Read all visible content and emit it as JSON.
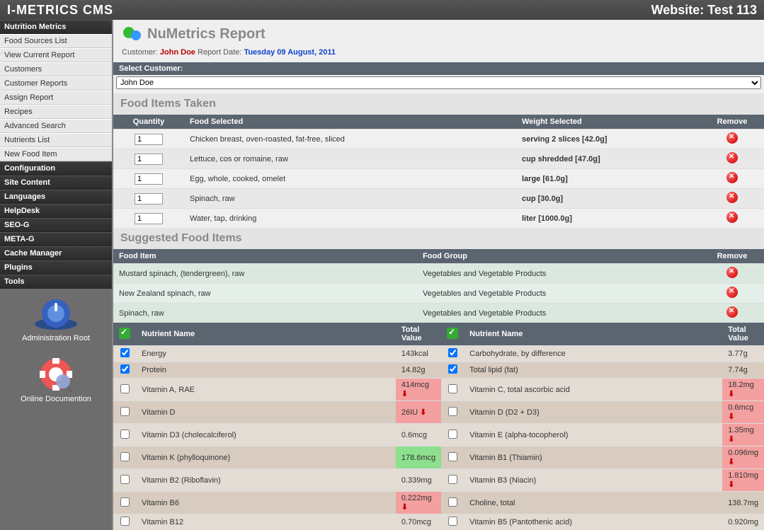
{
  "header": {
    "left": "I-METRICS CMS",
    "right": "Website: Test 113"
  },
  "sidebar": {
    "nutrition_head": "Nutrition Metrics",
    "nutrition_items": [
      "Food Sources List",
      "View Current Report",
      "Customers",
      "Customer Reports",
      "Assign Report",
      "Recipes",
      "Advanced Search",
      "Nutrients List",
      "New Food Item"
    ],
    "config_heads": [
      "Configuration",
      "Site Content",
      "Languages",
      "HelpDesk",
      "SEO-G",
      "META-G",
      "Cache Manager",
      "Plugins",
      "Tools"
    ],
    "admin_root": "Administration Root",
    "online_doc": "Online Documention"
  },
  "report": {
    "title": "NuMetrics Report",
    "customer_label": "Customer:",
    "customer_name": "John Doe",
    "date_label": "Report Date:",
    "date_value": "Tuesday 09 August, 2011",
    "select_label": "Select Customer:",
    "select_value": "John Doe"
  },
  "food_taken": {
    "title": "Food Items Taken",
    "headers": [
      "Quantity",
      "Food Selected",
      "Weight Selected",
      "Remove"
    ],
    "rows": [
      {
        "qty": "1",
        "food": "Chicken breast, oven-roasted, fat-free, sliced",
        "weight": "serving 2 slices [42.0g]"
      },
      {
        "qty": "1",
        "food": "Lettuce, cos or romaine, raw",
        "weight": "cup shredded [47.0g]"
      },
      {
        "qty": "1",
        "food": "Egg, whole, cooked, omelet",
        "weight": "large [61.0g]"
      },
      {
        "qty": "1",
        "food": "Spinach, raw",
        "weight": "cup [30.0g]"
      },
      {
        "qty": "1",
        "food": "Water, tap, drinking",
        "weight": "liter [1000.0g]"
      }
    ]
  },
  "suggested": {
    "title": "Suggested Food Items",
    "headers": [
      "Food Item",
      "Food Group",
      "Remove"
    ],
    "rows": [
      {
        "food": "Mustard spinach, (tendergreen), raw",
        "group": "Vegetables and Vegetable Products"
      },
      {
        "food": "New Zealand spinach, raw",
        "group": "Vegetables and Vegetable Products"
      },
      {
        "food": "Spinach, raw",
        "group": "Vegetables and Vegetable Products"
      }
    ]
  },
  "nutrients": {
    "headers": [
      "Nutrient Name",
      "Total Value",
      "Nutrient Name",
      "Total Value"
    ],
    "rows": [
      {
        "l_chk": true,
        "l_name": "Energy",
        "l_val": "143kcal",
        "l_flag": "",
        "r_chk": true,
        "r_name": "Carbohydrate, by difference",
        "r_val": "3.77g",
        "r_flag": ""
      },
      {
        "l_chk": true,
        "l_name": "Protein",
        "l_val": "14.82g",
        "l_flag": "",
        "r_chk": true,
        "r_name": "Total lipid (fat)",
        "r_val": "7.74g",
        "r_flag": ""
      },
      {
        "l_chk": false,
        "l_name": "Vitamin A, RAE",
        "l_val": "414mcg",
        "l_flag": "red",
        "r_chk": false,
        "r_name": "Vitamin C, total ascorbic acid",
        "r_val": "18.2mg",
        "r_flag": "red"
      },
      {
        "l_chk": false,
        "l_name": "Vitamin D",
        "l_val": "26IU",
        "l_flag": "red",
        "r_chk": false,
        "r_name": "Vitamin D (D2 + D3)",
        "r_val": "0.6mcg",
        "r_flag": "red"
      },
      {
        "l_chk": false,
        "l_name": "Vitamin D3 (cholecalciferol)",
        "l_val": "0.6mcg",
        "l_flag": "",
        "r_chk": false,
        "r_name": "Vitamin E (alpha-tocopherol)",
        "r_val": "1.35mg",
        "r_flag": "red"
      },
      {
        "l_chk": false,
        "l_name": "Vitamin K (phylloquinone)",
        "l_val": "178.6mcg",
        "l_flag": "green",
        "r_chk": false,
        "r_name": "Vitamin B1 (Thiamin)",
        "r_val": "0.096mg",
        "r_flag": "red"
      },
      {
        "l_chk": false,
        "l_name": "Vitamin B2 (Riboflavin)",
        "l_val": "0.339mg",
        "l_flag": "",
        "r_chk": false,
        "r_name": "Vitamin B3 (Niacin)",
        "r_val": "1.810mg",
        "r_flag": "red"
      },
      {
        "l_chk": false,
        "l_name": "Vitamin B6",
        "l_val": "0.222mg",
        "l_flag": "red",
        "r_chk": false,
        "r_name": "Choline, total",
        "r_val": "138.7mg",
        "r_flag": ""
      },
      {
        "l_chk": false,
        "l_name": "Vitamin B12",
        "l_val": "0.70mcg",
        "l_flag": "",
        "r_chk": false,
        "r_name": "Vitamin B5 (Pantothenic acid)",
        "r_val": "0.920mg",
        "r_flag": ""
      }
    ]
  }
}
